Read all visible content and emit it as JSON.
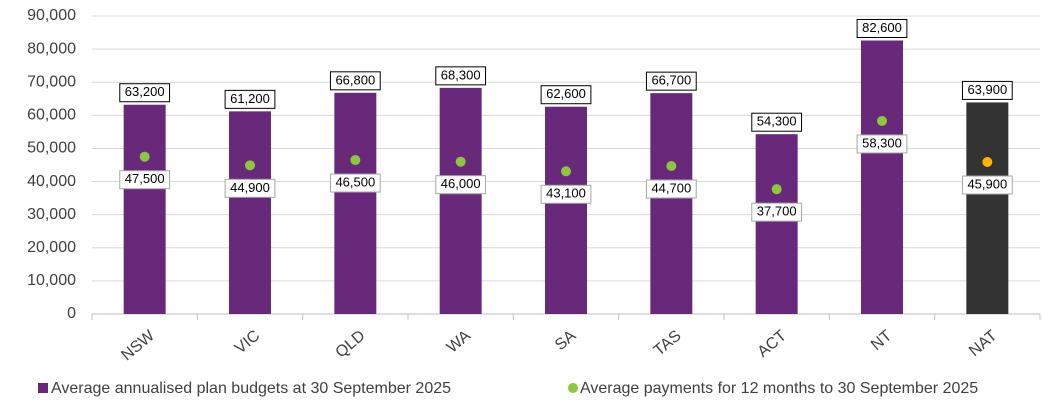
{
  "chart_data": {
    "type": "bar",
    "categories": [
      "NSW",
      "VIC",
      "QLD",
      "WA",
      "SA",
      "TAS",
      "ACT",
      "NT",
      "NAT"
    ],
    "series": [
      {
        "name": "Average annualised plan budgets at 30 September 2025",
        "type": "bar",
        "color": "#68297a",
        "colors": [
          "#68297a",
          "#68297a",
          "#68297a",
          "#68297a",
          "#68297a",
          "#68297a",
          "#68297a",
          "#68297a",
          "#333333"
        ],
        "values": [
          63200,
          61200,
          66800,
          68300,
          62600,
          66700,
          54300,
          82600,
          63900
        ],
        "value_labels": [
          "63,200",
          "61,200",
          "66,800",
          "68,300",
          "62,600",
          "66,700",
          "54,300",
          "82,600",
          "63,900"
        ]
      },
      {
        "name": "Average payments for 12 months to 30 September 2025",
        "type": "dot",
        "color": "#8dc63f",
        "colors": [
          "#8dc63f",
          "#8dc63f",
          "#8dc63f",
          "#8dc63f",
          "#8dc63f",
          "#8dc63f",
          "#8dc63f",
          "#8dc63f",
          "#ffb300"
        ],
        "values": [
          47500,
          44900,
          46500,
          46000,
          43100,
          44700,
          37700,
          58300,
          45900
        ],
        "value_labels": [
          "47,500",
          "44,900",
          "46,500",
          "46,000",
          "43,100",
          "44,700",
          "37,700",
          "58,300",
          "45,900"
        ]
      }
    ],
    "ylim": [
      0,
      90000
    ],
    "yticks": [
      0,
      {
        "value": 10000,
        "label": "10,000"
      },
      {
        "value": 20000,
        "label": "20,000"
      },
      {
        "value": 30000,
        "label": "30,000"
      },
      {
        "value": 40000,
        "label": "40,000"
      },
      {
        "value": 50000,
        "label": "50,000"
      },
      {
        "value": 60000,
        "label": "60,000"
      },
      {
        "value": 70000,
        "label": "70,000"
      },
      {
        "value": 80000,
        "label": "80,000"
      },
      {
        "value": 90000,
        "label": "90,000"
      }
    ],
    "grid": true,
    "legend": "bottom"
  }
}
